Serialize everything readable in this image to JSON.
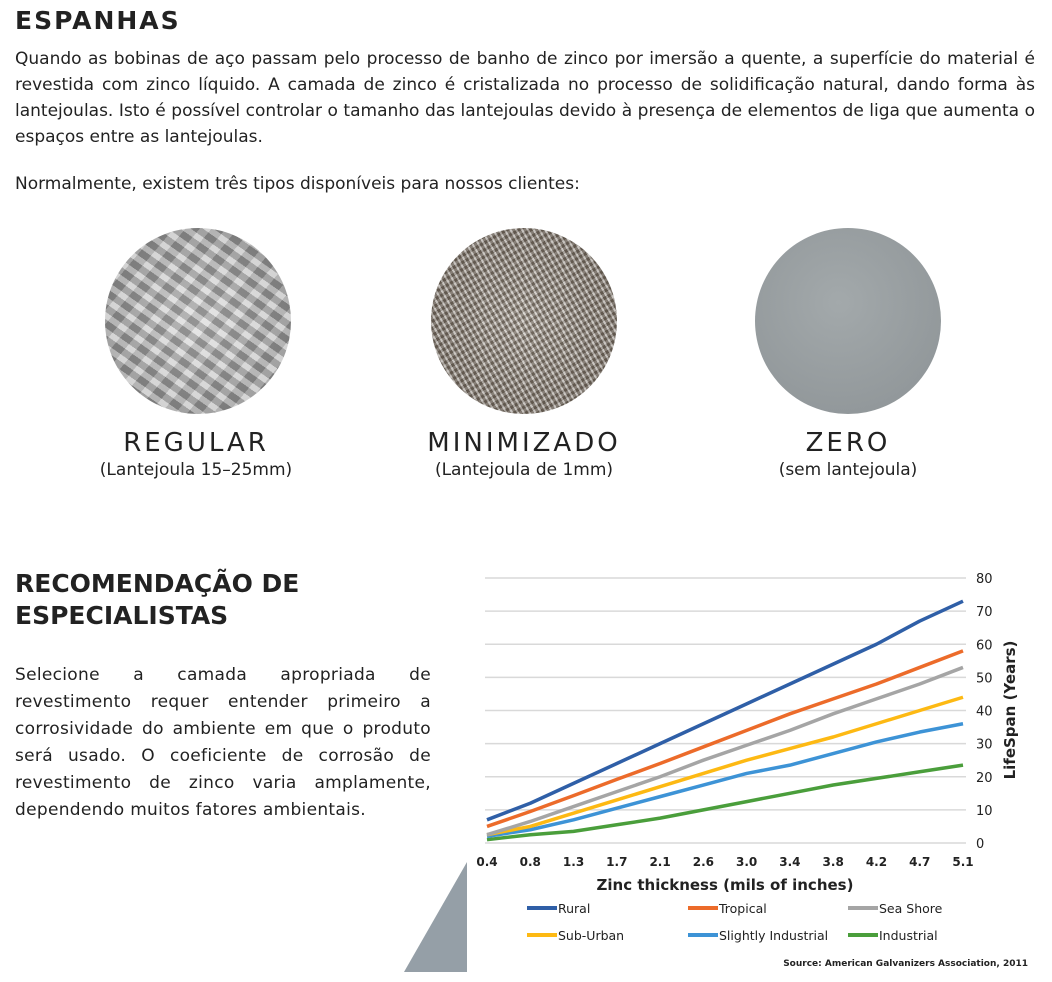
{
  "section1": {
    "title": "ESPANHAS",
    "paragraph": "Quando as bobinas de aço passam pelo processo de banho de zinco por imersão a quente, a superfície do material é revestida com zinco líquido. A camada de zinco é cristalizada no processo de solidificação natural, dando forma às lantejoulas. Isto é possível controlar o tamanho das lantejoulas devido à presença de elementos de liga que aumenta o espaços entre as lantejoulas.",
    "intro": "Normalmente, existem três tipos disponíveis para nossos clientes:"
  },
  "types": [
    {
      "title": "REGULAR",
      "subtitle": "(Lantejoula 15–25mm)"
    },
    {
      "title": "MINIMIZADO",
      "subtitle": "(Lantejoula de 1mm)"
    },
    {
      "title": "ZERO",
      "subtitle": "(sem lantejoula)"
    }
  ],
  "section2": {
    "title_line1": "RECOMENDAÇÃO DE",
    "title_line2": "ESPECIALISTAS",
    "paragraph": "Selecione a camada apropriada de revestimento requer entender primeiro a corrosividade do ambiente em que o produto será usado. O coeficiente de corrosão de revestimento de zinco varia amplamente, dependendo muitos fatores ambientais."
  },
  "chart_data": {
    "type": "line",
    "xlabel": "Zinc thickness (mils of inches)",
    "ylabel": "LifeSpan (Years)",
    "categories": [
      "0.4",
      "0.8",
      "1.3",
      "1.7",
      "2.1",
      "2.6",
      "3.0",
      "3.4",
      "3.8",
      "4.2",
      "4.7",
      "5.1"
    ],
    "ylim": [
      0,
      80
    ],
    "yticks": [
      0,
      10,
      20,
      30,
      40,
      50,
      60,
      70,
      80
    ],
    "grid": true,
    "legend_placement": "bottom",
    "source": "Source: American Galvanizers Association, 2011",
    "series": [
      {
        "name": "Rural",
        "color": "#2f5fa7",
        "values": [
          7,
          12,
          18,
          24,
          30,
          36,
          42,
          48,
          54,
          60,
          67,
          73
        ]
      },
      {
        "name": "Tropical",
        "color": "#ec6b2a",
        "values": [
          5,
          9.5,
          14.3,
          19.2,
          24,
          29,
          34,
          39,
          43.5,
          48,
          53,
          58
        ]
      },
      {
        "name": "Sea Shore",
        "color": "#a5a5a5",
        "values": [
          2.5,
          6.5,
          11,
          15.5,
          20,
          25,
          29.5,
          34,
          39,
          43.5,
          48,
          53
        ]
      },
      {
        "name": "Sub-Urban",
        "color": "#fdb913",
        "values": [
          2.5,
          5,
          9,
          13,
          17,
          21,
          25,
          28.5,
          32,
          36,
          40,
          44
        ]
      },
      {
        "name": "Slightly Industrial",
        "color": "#3d93d6",
        "values": [
          2,
          4,
          7,
          10.5,
          14,
          17.5,
          21,
          23.5,
          27,
          30.5,
          33.5,
          36
        ]
      },
      {
        "name": "Industrial",
        "color": "#4a9e3b",
        "values": [
          1,
          2.5,
          3.5,
          5.5,
          7.5,
          10,
          12.5,
          15,
          17.5,
          19.5,
          21.5,
          23.5
        ]
      }
    ]
  }
}
